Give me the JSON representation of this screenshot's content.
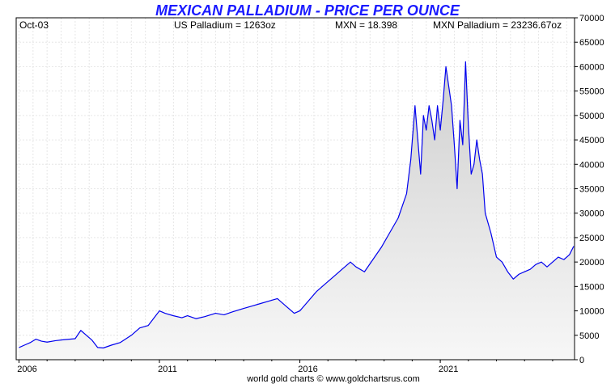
{
  "chart_data": {
    "type": "area",
    "title": "MEXICAN PALLADIUM - PRICE PER OUNCE",
    "date_label": "Oct-03",
    "info": {
      "us_palladium": "US Palladium = 1263oz",
      "mxn": "MXN = 18.398",
      "mxn_palladium": "MXN Palladium = 23236.67oz"
    },
    "footer": "world gold charts © www.goldchartsrus.com",
    "x_ticks": [
      "2006",
      "2011",
      "2016",
      "2021"
    ],
    "xlim": [
      2005.9,
      2025.78
    ],
    "ylim": [
      0,
      70000
    ],
    "y_ticks": [
      "0",
      "5000",
      "10000",
      "15000",
      "20000",
      "25000",
      "30000",
      "35000",
      "40000",
      "45000",
      "50000",
      "55000",
      "60000",
      "65000",
      "70000"
    ],
    "grid": true,
    "series": [
      {
        "color": "#0000ee",
        "fill": "#e8e8e8",
        "x": [
          2006.0,
          2006.2,
          2006.4,
          2006.6,
          2006.8,
          2007.0,
          2007.3,
          2007.6,
          2008.0,
          2008.2,
          2008.4,
          2008.6,
          2008.8,
          2009.0,
          2009.3,
          2009.6,
          2010.0,
          2010.3,
          2010.6,
          2010.8,
          2011.0,
          2011.2,
          2011.5,
          2011.8,
          2012.0,
          2012.3,
          2012.6,
          2013.0,
          2013.3,
          2013.6,
          2014.0,
          2014.3,
          2014.6,
          2014.9,
          2015.2,
          2015.5,
          2015.8,
          2016.0,
          2016.3,
          2016.6,
          2016.9,
          2017.2,
          2017.5,
          2017.8,
          2018.0,
          2018.3,
          2018.6,
          2018.9,
          2019.2,
          2019.5,
          2019.8,
          2019.95,
          2020.1,
          2020.2,
          2020.3,
          2020.4,
          2020.5,
          2020.6,
          2020.7,
          2020.8,
          2020.9,
          2021.0,
          2021.1,
          2021.2,
          2021.3,
          2021.4,
          2021.5,
          2021.6,
          2021.7,
          2021.8,
          2021.9,
          2022.0,
          2022.1,
          2022.2,
          2022.3,
          2022.4,
          2022.5,
          2022.6,
          2022.8,
          2023.0,
          2023.2,
          2023.4,
          2023.6,
          2023.8,
          2024.0,
          2024.2,
          2024.4,
          2024.6,
          2024.8,
          2025.0,
          2025.2,
          2025.4,
          2025.6,
          2025.75
        ],
        "y": [
          2500,
          3000,
          3500,
          4200,
          3800,
          3600,
          3900,
          4100,
          4300,
          6000,
          5000,
          4000,
          2500,
          2400,
          3000,
          3500,
          5000,
          6500,
          7000,
          8500,
          10000,
          9500,
          9000,
          8600,
          9000,
          8400,
          8800,
          9500,
          9200,
          9800,
          10500,
          11000,
          11500,
          12000,
          12500,
          11000,
          9500,
          10000,
          12000,
          14000,
          15500,
          17000,
          18500,
          20000,
          19000,
          18000,
          20500,
          23000,
          26000,
          29000,
          34000,
          41000,
          52000,
          45000,
          38000,
          50000,
          47000,
          52000,
          49000,
          45000,
          52000,
          47000,
          53000,
          60000,
          56000,
          52000,
          44000,
          35000,
          49000,
          44000,
          61000,
          48000,
          38000,
          40000,
          45000,
          41000,
          38000,
          30000,
          26000,
          21000,
          20000,
          18000,
          16500,
          17500,
          18000,
          18500,
          19500,
          20000,
          19000,
          20000,
          21000,
          20500,
          21500,
          23236
        ]
      }
    ]
  }
}
